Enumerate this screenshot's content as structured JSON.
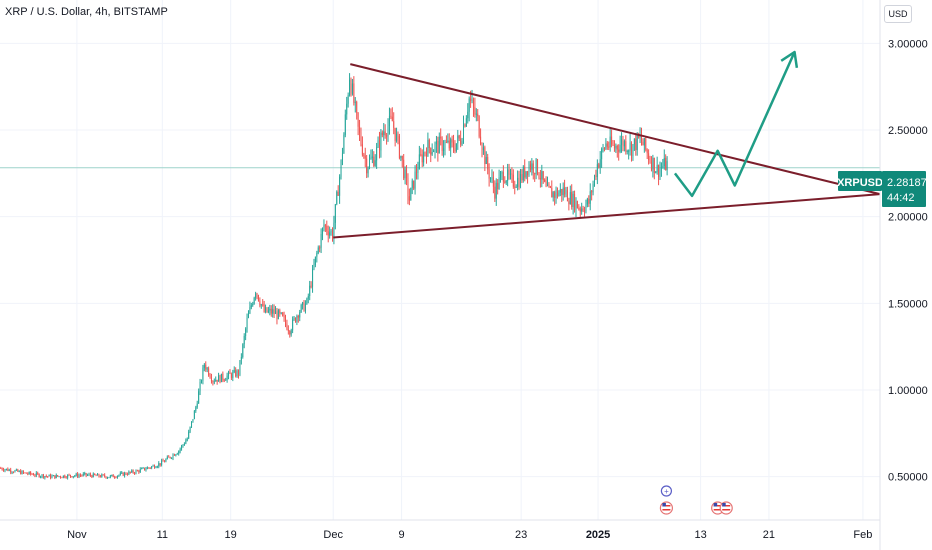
{
  "header": {
    "title": "XRP / U.S. Dollar, 4h, BITSTAMP",
    "currency": "USD"
  },
  "price_badge": {
    "symbol": "XRPUSD",
    "price": "2.28187",
    "countdown": "44:42"
  },
  "colors": {
    "up": "#26a69a",
    "down": "#ef5350",
    "trendline": "#7b1e2b",
    "projection": "#1f9d86",
    "badge": "#10897a",
    "grid": "#f0f3fa",
    "last_price_line": "#9ed4cc"
  },
  "chart_data": {
    "type": "candlestick",
    "symbol": "XRP / U.S. Dollar",
    "interval": "4h",
    "exchange": "BITSTAMP",
    "y_axis": {
      "ticks": [
        0.5,
        1.0,
        1.5,
        2.0,
        2.5,
        3.0
      ],
      "tick_labels": [
        "0.50000",
        "1.00000",
        "1.50000",
        "2.00000",
        "2.50000",
        "3.00000"
      ],
      "range": [
        0.25,
        3.25
      ]
    },
    "x_axis": {
      "tick_labels": [
        "Nov",
        "11",
        "19",
        "Dec",
        "9",
        "23",
        "2025",
        "13",
        "21",
        "Feb"
      ],
      "tick_dates": [
        "2024-11-01",
        "2024-11-11",
        "2024-11-19",
        "2024-12-01",
        "2024-12-09",
        "2024-12-23",
        "2025-01-01",
        "2025-01-13",
        "2025-01-21",
        "2025-02-01"
      ],
      "range": [
        "2024-10-23",
        "2025-02-03"
      ]
    },
    "last_price": 2.28187,
    "price_path": [
      [
        "2024-10-23",
        0.55
      ],
      [
        "2024-10-26",
        0.52
      ],
      [
        "2024-10-29",
        0.5
      ],
      [
        "2024-11-02",
        0.51
      ],
      [
        "2024-11-05",
        0.5
      ],
      [
        "2024-11-08",
        0.53
      ],
      [
        "2024-11-10",
        0.56
      ],
      [
        "2024-11-11",
        0.58
      ],
      [
        "2024-11-13",
        0.65
      ],
      [
        "2024-11-14",
        0.72
      ],
      [
        "2024-11-15",
        0.9
      ],
      [
        "2024-11-16",
        1.15
      ],
      [
        "2024-11-17",
        1.06
      ],
      [
        "2024-11-18",
        1.07
      ],
      [
        "2024-11-20",
        1.1
      ],
      [
        "2024-11-21",
        1.4
      ],
      [
        "2024-11-22",
        1.58
      ],
      [
        "2024-11-23",
        1.45
      ],
      [
        "2024-11-24",
        1.45
      ],
      [
        "2024-11-25",
        1.42
      ],
      [
        "2024-11-26",
        1.35
      ],
      [
        "2024-11-27",
        1.45
      ],
      [
        "2024-11-28",
        1.5
      ],
      [
        "2024-11-29",
        1.75
      ],
      [
        "2024-11-30",
        1.95
      ],
      [
        "2024-12-01",
        1.9
      ],
      [
        "2024-12-02",
        2.3
      ],
      [
        "2024-12-03",
        2.82
      ],
      [
        "2024-12-04",
        2.5
      ],
      [
        "2024-12-05",
        2.3
      ],
      [
        "2024-12-06",
        2.35
      ],
      [
        "2024-12-07",
        2.5
      ],
      [
        "2024-12-08",
        2.55
      ],
      [
        "2024-12-09",
        2.35
      ],
      [
        "2024-12-10",
        2.1
      ],
      [
        "2024-12-11",
        2.3
      ],
      [
        "2024-12-12",
        2.4
      ],
      [
        "2024-12-13",
        2.4
      ],
      [
        "2024-12-14",
        2.42
      ],
      [
        "2024-12-15",
        2.4
      ],
      [
        "2024-12-16",
        2.45
      ],
      [
        "2024-12-17",
        2.68
      ],
      [
        "2024-12-18",
        2.55
      ],
      [
        "2024-12-19",
        2.3
      ],
      [
        "2024-12-20",
        2.15
      ],
      [
        "2024-12-21",
        2.25
      ],
      [
        "2024-12-22",
        2.2
      ],
      [
        "2024-12-23",
        2.22
      ],
      [
        "2024-12-24",
        2.3
      ],
      [
        "2024-12-25",
        2.28
      ],
      [
        "2024-12-26",
        2.15
      ],
      [
        "2024-12-27",
        2.13
      ],
      [
        "2024-12-28",
        2.15
      ],
      [
        "2024-12-29",
        2.1
      ],
      [
        "2024-12-30",
        2.05
      ],
      [
        "2024-12-31",
        2.08
      ],
      [
        "2025-01-01",
        2.3
      ],
      [
        "2025-01-02",
        2.42
      ],
      [
        "2025-01-03",
        2.4
      ],
      [
        "2025-01-04",
        2.43
      ],
      [
        "2025-01-05",
        2.4
      ],
      [
        "2025-01-06",
        2.45
      ],
      [
        "2025-01-07",
        2.35
      ],
      [
        "2025-01-08",
        2.27
      ],
      [
        "2025-01-09",
        2.3
      ]
    ],
    "annotations": [
      {
        "type": "trendline",
        "label": "upper",
        "points": [
          [
            "2024-12-03",
            2.88
          ],
          [
            "2025-02-03",
            2.13
          ]
        ]
      },
      {
        "type": "trendline",
        "label": "lower",
        "points": [
          [
            "2024-12-01",
            1.88
          ],
          [
            "2025-02-03",
            2.13
          ]
        ]
      },
      {
        "type": "projection",
        "points": [
          [
            "2025-01-10",
            2.25
          ],
          [
            "2025-01-12",
            2.12
          ],
          [
            "2025-01-15",
            2.38
          ],
          [
            "2025-01-17",
            2.18
          ],
          [
            "2025-01-24",
            2.95
          ]
        ]
      }
    ],
    "event_markers": [
      {
        "date": "2025-01-09",
        "kind": "flag-us"
      },
      {
        "date": "2025-01-15",
        "kind": "flag-us"
      },
      {
        "date": "2025-01-16",
        "kind": "flag-us"
      }
    ]
  }
}
